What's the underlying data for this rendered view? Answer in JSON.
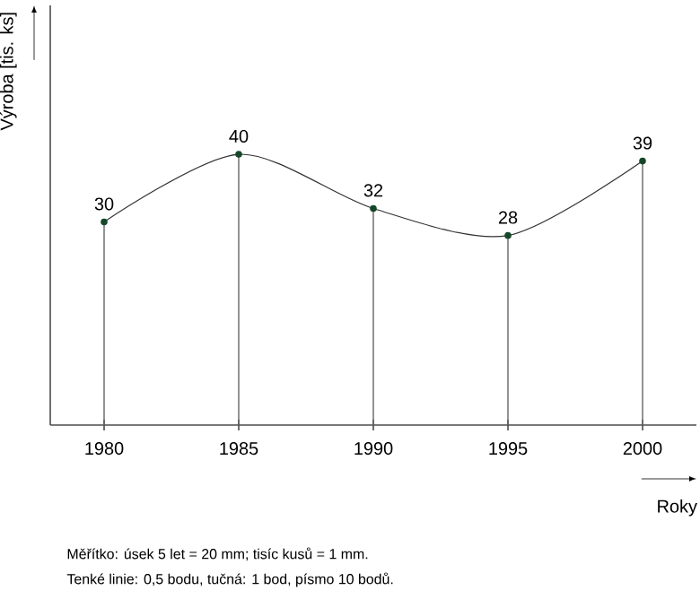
{
  "chart_data": {
    "type": "line",
    "xlabel": "Roky",
    "ylabel": "Výroba [tis. ks]",
    "x": [
      1980,
      1985,
      1990,
      1995,
      2000
    ],
    "values": [
      30,
      40,
      32,
      28,
      39
    ],
    "color": "#333333",
    "marker": "circle",
    "line_style": "solid",
    "data_labels": true,
    "xlim": [
      1978,
      2002
    ],
    "ylim": [
      0,
      62
    ],
    "xticks": [
      1980,
      1985,
      1990,
      1995,
      2000
    ],
    "tick_labels": "x",
    "grid": false,
    "annotations": [
      "Měřítko: úsek 5 let = 20 mm; tisíc kusů = 1 mm.",
      "Tenké linie: 0,5 bodu, tučná: 1 bod, písmo 10 bodů."
    ]
  }
}
